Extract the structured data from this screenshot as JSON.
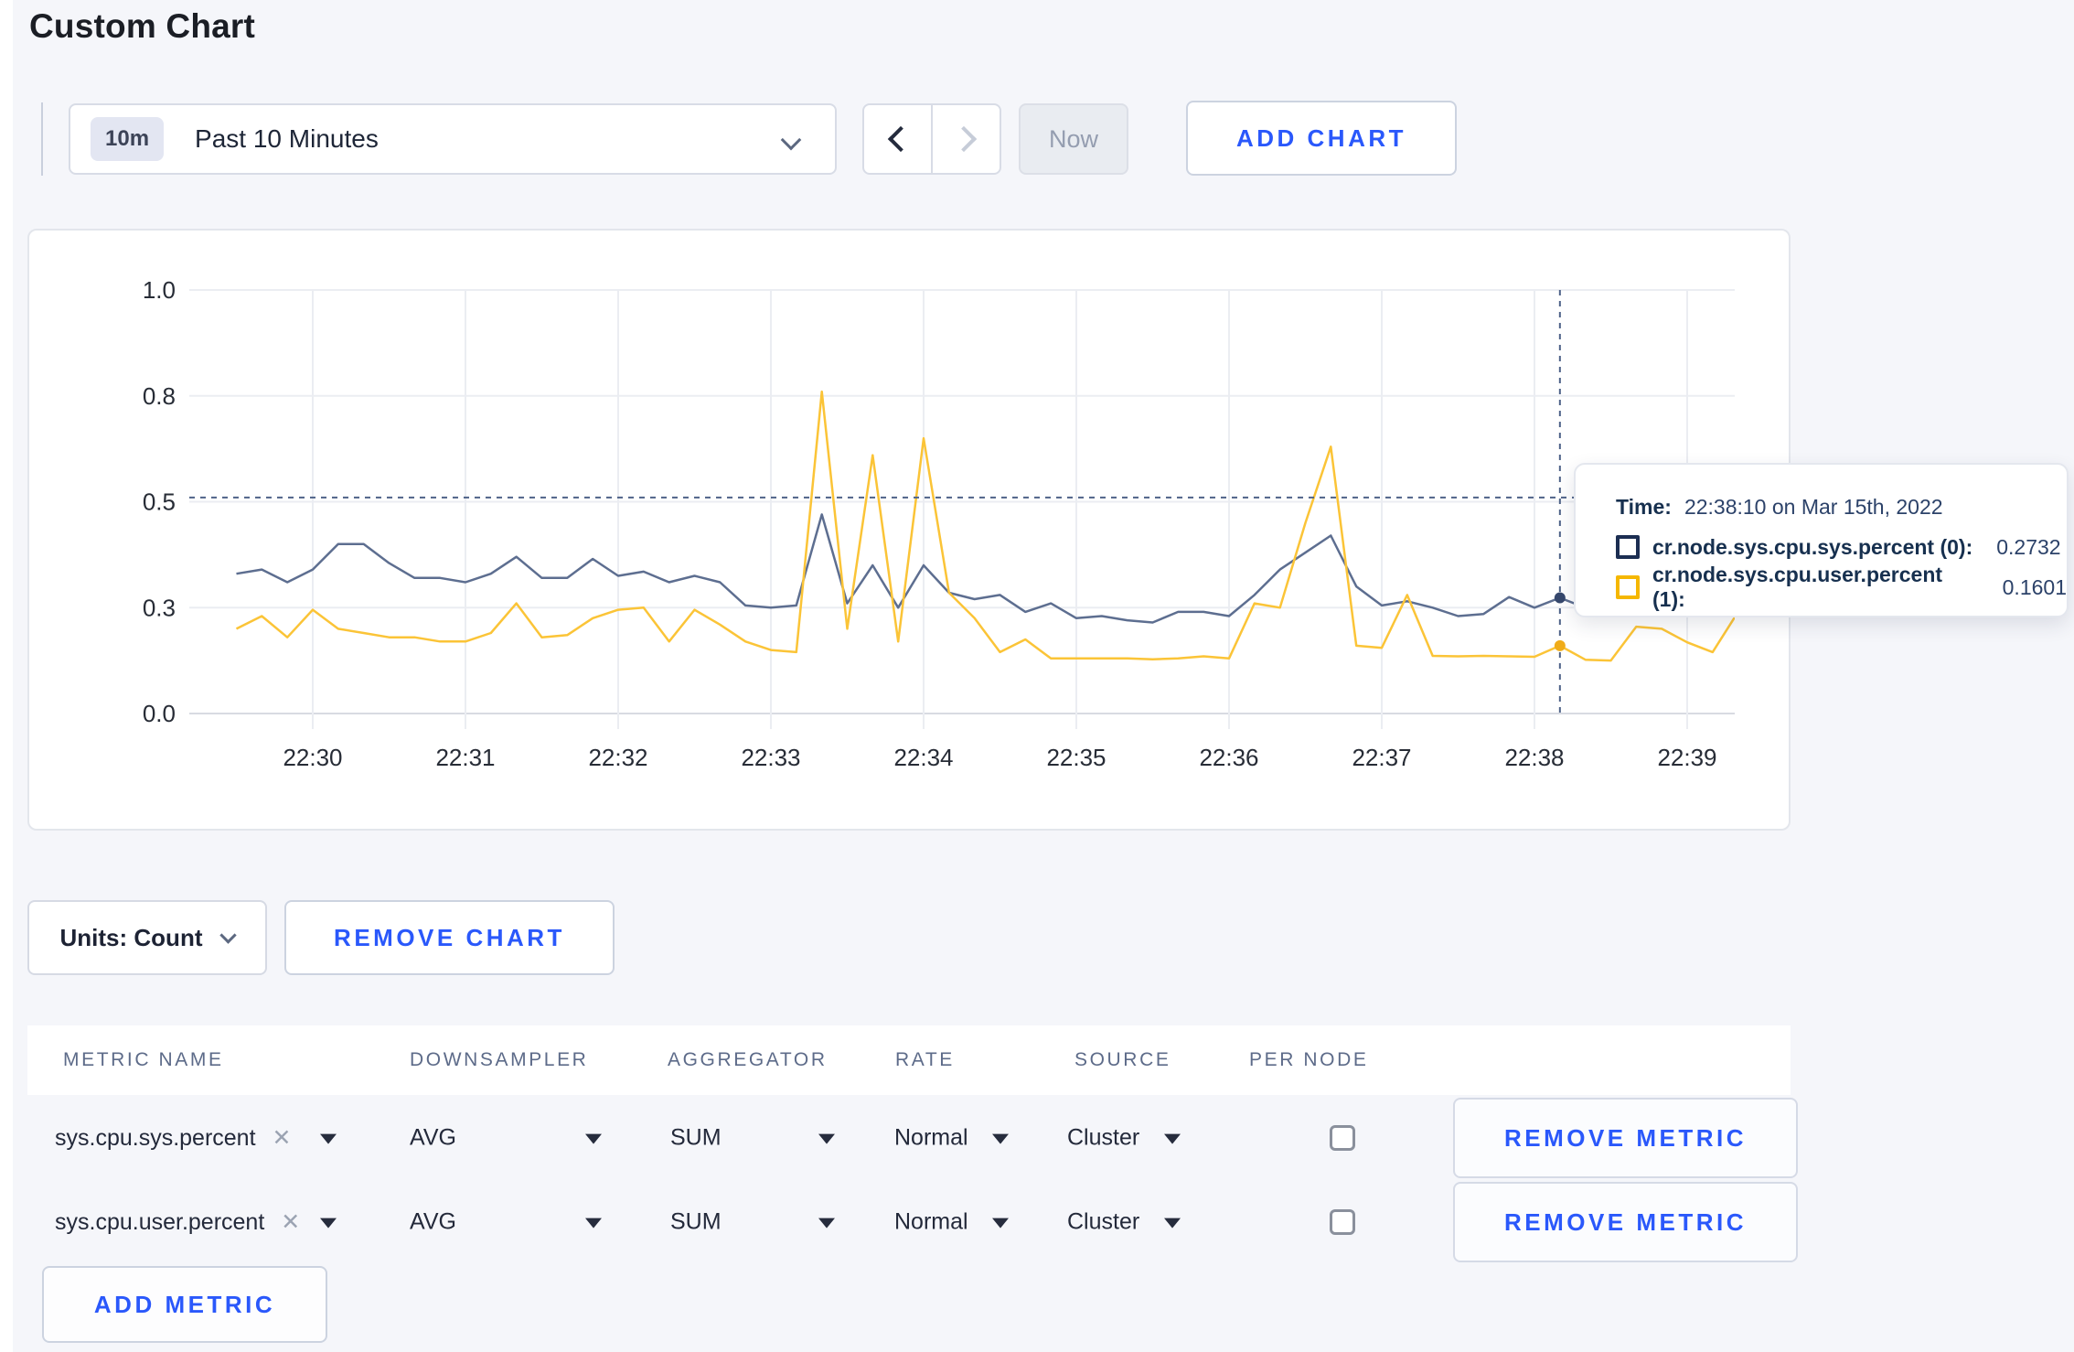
{
  "page": {
    "title": "Custom Chart"
  },
  "toolbar": {
    "time_window_badge": "10m",
    "time_window_label": "Past 10 Minutes",
    "now_label": "Now",
    "add_chart_label": "ADD CHART"
  },
  "colors": {
    "accent_blue": "#2a58fb",
    "series_sys": "#5d6e90",
    "series_user": "#fbc437",
    "crosshair": "#4e6288",
    "grid": "#ebedf2",
    "axis": "#d8dbe2"
  },
  "chart_data": {
    "type": "line",
    "title": "",
    "xlabel": "",
    "ylabel": "",
    "ylim": [
      0,
      1
    ],
    "grid": true,
    "legend_position": "tooltip",
    "x_ticks": [
      "22:30",
      "22:31",
      "22:32",
      "22:33",
      "22:34",
      "22:35",
      "22:36",
      "22:37",
      "22:38",
      "22:39"
    ],
    "y_ticks": {
      "values": [
        1,
        0.75,
        0.5,
        0.25,
        0
      ],
      "labels": [
        "1.0",
        "0.8",
        "0.5",
        "0.3",
        "0.0"
      ]
    },
    "x": [
      "22:29:30",
      "22:29:40",
      "22:29:50",
      "22:30:00",
      "22:30:10",
      "22:30:20",
      "22:30:30",
      "22:30:40",
      "22:30:50",
      "22:31:00",
      "22:31:10",
      "22:31:20",
      "22:31:30",
      "22:31:40",
      "22:31:50",
      "22:32:00",
      "22:32:10",
      "22:32:20",
      "22:32:30",
      "22:32:40",
      "22:32:50",
      "22:33:00",
      "22:33:10",
      "22:33:20",
      "22:33:30",
      "22:33:40",
      "22:33:50",
      "22:34:00",
      "22:34:10",
      "22:34:20",
      "22:34:30",
      "22:34:40",
      "22:34:50",
      "22:35:00",
      "22:35:10",
      "22:35:20",
      "22:35:30",
      "22:35:40",
      "22:35:50",
      "22:36:00",
      "22:36:10",
      "22:36:20",
      "22:36:30",
      "22:36:40",
      "22:36:50",
      "22:37:00",
      "22:37:10",
      "22:37:20",
      "22:37:30",
      "22:37:40",
      "22:37:50",
      "22:38:00",
      "22:38:10",
      "22:38:20",
      "22:38:30",
      "22:38:40",
      "22:38:50",
      "22:39:00",
      "22:39:10",
      "22:39:20"
    ],
    "series": [
      {
        "name": "cr.node.sys.cpu.sys.percent (0)",
        "color": "#5d6e90",
        "dot_color": "#36486d",
        "values": [
          0.33,
          0.34,
          0.31,
          0.34,
          0.4,
          0.4,
          0.355,
          0.32,
          0.32,
          0.31,
          0.33,
          0.37,
          0.32,
          0.32,
          0.365,
          0.325,
          0.335,
          0.31,
          0.325,
          0.31,
          0.255,
          0.25,
          0.255,
          0.47,
          0.26,
          0.35,
          0.25,
          0.35,
          0.285,
          0.27,
          0.28,
          0.24,
          0.26,
          0.225,
          0.23,
          0.22,
          0.215,
          0.24,
          0.24,
          0.23,
          0.28,
          0.34,
          0.38,
          0.42,
          0.3,
          0.255,
          0.265,
          0.25,
          0.23,
          0.235,
          0.275,
          0.25,
          0.2732,
          0.25,
          0.26,
          0.27,
          0.26,
          0.28,
          0.29,
          0.3
        ]
      },
      {
        "name": "cr.node.sys.cpu.user.percent (1)",
        "color": "#fbc437",
        "dot_color": "#f0ac19",
        "values": [
          0.2,
          0.23,
          0.18,
          0.245,
          0.2,
          0.19,
          0.18,
          0.18,
          0.17,
          0.17,
          0.19,
          0.26,
          0.18,
          0.185,
          0.225,
          0.245,
          0.25,
          0.17,
          0.245,
          0.21,
          0.17,
          0.15,
          0.145,
          0.76,
          0.2,
          0.61,
          0.17,
          0.65,
          0.285,
          0.225,
          0.145,
          0.175,
          0.13,
          0.13,
          0.13,
          0.13,
          0.128,
          0.13,
          0.135,
          0.13,
          0.26,
          0.25,
          0.45,
          0.63,
          0.16,
          0.155,
          0.28,
          0.136,
          0.135,
          0.136,
          0.135,
          0.134,
          0.1601,
          0.127,
          0.125,
          0.205,
          0.2,
          0.168,
          0.145,
          0.24
        ]
      }
    ],
    "crosshair": {
      "time": "22:38:10",
      "value_y": 0.51
    },
    "hover_points": [
      {
        "series": 0,
        "value": 0.2732
      },
      {
        "series": 1,
        "value": 0.1601
      }
    ]
  },
  "tooltip": {
    "time_label": "Time:",
    "time_value": "22:38:10 on Mar 15th, 2022",
    "rows": [
      {
        "label": "cr.node.sys.cpu.sys.percent (0):",
        "value": "0.2732",
        "color": "#1c2e52"
      },
      {
        "label": "cr.node.sys.cpu.user.percent (1):",
        "value": "0.1601",
        "color": "#f5b700"
      }
    ]
  },
  "chart_controls": {
    "units_label": "Units: Count",
    "remove_chart_label": "REMOVE CHART"
  },
  "metrics_table": {
    "headers": [
      "METRIC NAME",
      "DOWNSAMPLER",
      "AGGREGATOR",
      "RATE",
      "SOURCE",
      "PER NODE"
    ],
    "rows": [
      {
        "metric": "sys.cpu.sys.percent",
        "remove_glyph": "✕",
        "downsampler": "AVG",
        "aggregator": "SUM",
        "rate": "Normal",
        "source": "Cluster",
        "per_node_checked": false,
        "remove_label": "REMOVE METRIC"
      },
      {
        "metric": "sys.cpu.user.percent",
        "remove_glyph": "✕",
        "downsampler": "AVG",
        "aggregator": "SUM",
        "rate": "Normal",
        "source": "Cluster",
        "per_node_checked": false,
        "remove_label": "REMOVE METRIC"
      }
    ],
    "add_metric_label": "ADD METRIC"
  }
}
